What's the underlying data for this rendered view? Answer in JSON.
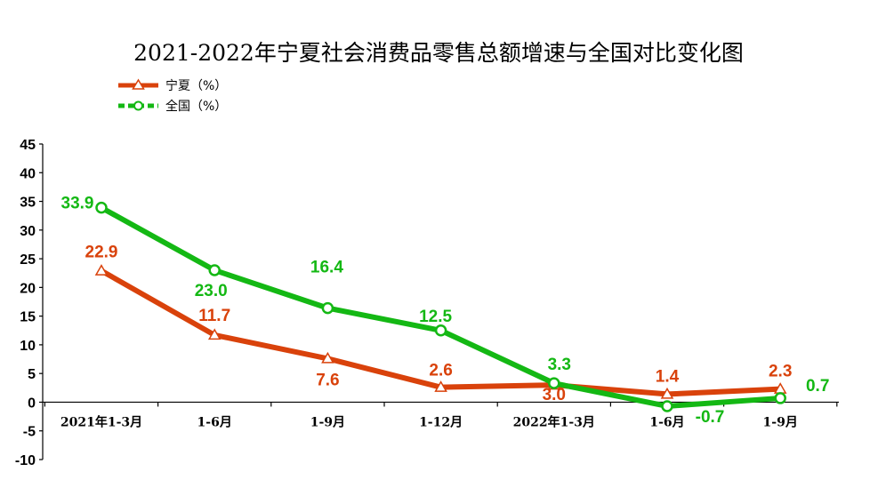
{
  "chart_data": {
    "type": "line",
    "title": "2021-2022年宁夏社会消费品零售总额增速与全国对比变化图",
    "categories": [
      "2021年1-3月",
      "1-6月",
      "1-9月",
      "1-12月",
      "2022年1-3月",
      "1-6月",
      "1-9月"
    ],
    "ylim": [
      -10,
      45
    ],
    "yticks": [
      45,
      40,
      35,
      30,
      25,
      20,
      15,
      10,
      5,
      0,
      -5,
      -10
    ],
    "grid": false,
    "legend_position": "top-left",
    "series": [
      {
        "name": "宁夏（%）",
        "color": "#d9420b",
        "marker": "triangle",
        "values": [
          22.9,
          11.7,
          7.6,
          2.6,
          3.0,
          1.4,
          2.3
        ],
        "labels": [
          "22.9",
          "11.7",
          "7.6",
          "2.6",
          "3.0",
          "1.4",
          "2.3"
        ]
      },
      {
        "name": "全国（%）",
        "color": "#14b814",
        "marker": "circle",
        "values": [
          33.9,
          23.0,
          16.4,
          12.5,
          3.3,
          -0.7,
          0.7
        ],
        "labels": [
          "33.9",
          "23.0",
          "16.4",
          "12.5",
          "3.3",
          "-0.7",
          "0.7"
        ]
      }
    ]
  }
}
